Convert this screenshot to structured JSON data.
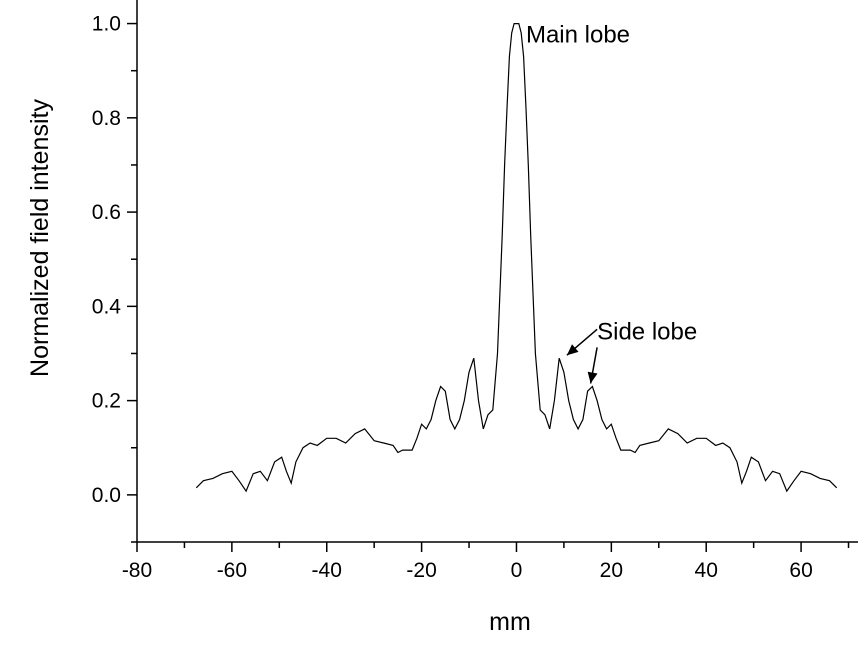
{
  "chart_data": {
    "type": "line",
    "xlabel": "mm",
    "ylabel": "Normalized field intensity",
    "xlim": [
      -80,
      72
    ],
    "ylim": [
      -0.1,
      1.05
    ],
    "x_ticks": [
      "-80",
      "-60",
      "-40",
      "-20",
      "0",
      "20",
      "40",
      "60"
    ],
    "y_ticks": [
      "0.0",
      "0.2",
      "0.4",
      "0.6",
      "0.8",
      "1.0"
    ],
    "grid": false,
    "legend": "none",
    "line_color": "#000000",
    "annotations": [
      {
        "text": "Main lobe",
        "x": 2,
        "y": 0.96
      },
      {
        "text": "Side lobe",
        "x": 17,
        "y": 0.33,
        "arrows_to": [
          [
            10,
            0.29
          ],
          [
            15,
            0.23
          ]
        ]
      }
    ],
    "series": [
      {
        "x": [
          -67.5,
          -66,
          -64,
          -62,
          -60,
          -58.5,
          -57,
          -55.5,
          -54,
          -52.5,
          -51,
          -49.5,
          -48.5,
          -47.5,
          -46.5,
          -45,
          -43.5,
          -42,
          -40,
          -38,
          -36,
          -34,
          -32,
          -30,
          -28,
          -26,
          -25,
          -24,
          -23,
          -22,
          -21,
          -20,
          -19,
          -18,
          -17,
          -16,
          -15,
          -14,
          -13,
          -12,
          -11,
          -10,
          -9,
          -8,
          -7,
          -6,
          -5,
          -4,
          -3,
          -2.5,
          -2,
          -1.5,
          -1,
          -0.5,
          0,
          0.5,
          1,
          1.5,
          2,
          2.5,
          3,
          4,
          5,
          6,
          7,
          8,
          9,
          10,
          11,
          12,
          13,
          14,
          15,
          16,
          17,
          18,
          19,
          20,
          21,
          22,
          23,
          24,
          25,
          26,
          28,
          30,
          32,
          34,
          36,
          38,
          40,
          42,
          43.5,
          45,
          46.5,
          47.5,
          48.5,
          49.5,
          51,
          52.5,
          54,
          55.5,
          57,
          58.5,
          60,
          62,
          64,
          66,
          67.5
        ],
        "y": [
          0.015,
          0.03,
          0.035,
          0.045,
          0.05,
          0.03,
          0.008,
          0.045,
          0.05,
          0.03,
          0.07,
          0.08,
          0.05,
          0.025,
          0.07,
          0.1,
          0.11,
          0.105,
          0.12,
          0.12,
          0.11,
          0.13,
          0.14,
          0.115,
          0.11,
          0.105,
          0.09,
          0.095,
          0.095,
          0.095,
          0.12,
          0.15,
          0.14,
          0.16,
          0.2,
          0.23,
          0.22,
          0.16,
          0.14,
          0.16,
          0.2,
          0.26,
          0.29,
          0.2,
          0.14,
          0.17,
          0.18,
          0.3,
          0.55,
          0.7,
          0.82,
          0.93,
          0.98,
          1.0,
          1.0,
          1.0,
          0.98,
          0.93,
          0.82,
          0.7,
          0.55,
          0.3,
          0.18,
          0.17,
          0.14,
          0.2,
          0.29,
          0.26,
          0.2,
          0.16,
          0.14,
          0.16,
          0.22,
          0.23,
          0.2,
          0.16,
          0.14,
          0.15,
          0.12,
          0.095,
          0.095,
          0.095,
          0.09,
          0.105,
          0.11,
          0.115,
          0.14,
          0.13,
          0.11,
          0.12,
          0.12,
          0.105,
          0.11,
          0.1,
          0.07,
          0.025,
          0.05,
          0.08,
          0.07,
          0.03,
          0.05,
          0.045,
          0.008,
          0.03,
          0.05,
          0.045,
          0.035,
          0.03,
          0.015
        ]
      }
    ]
  }
}
